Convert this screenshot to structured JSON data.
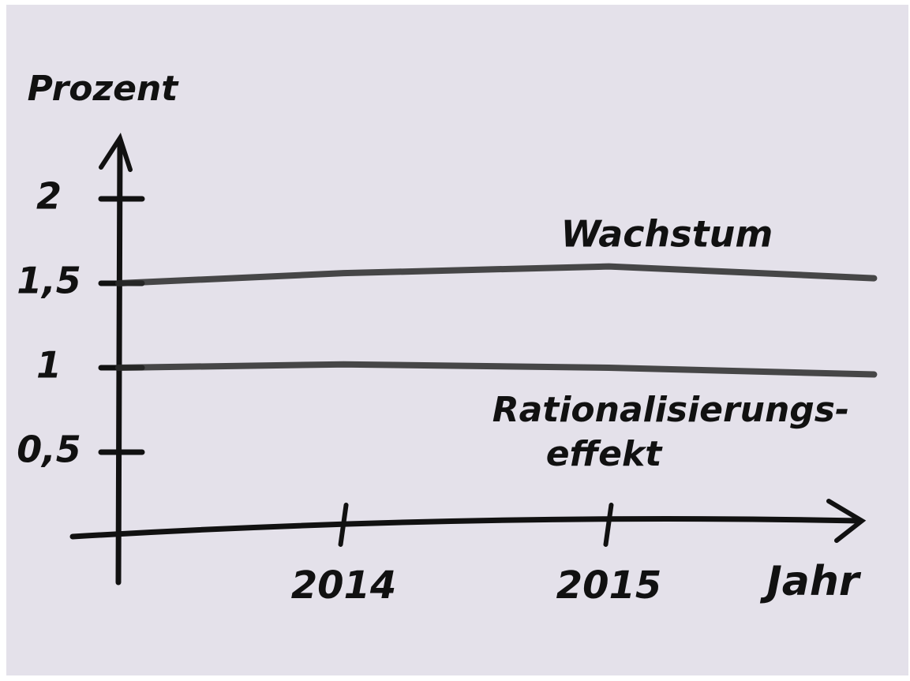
{
  "chart_data": {
    "type": "line",
    "y_label": "Prozent",
    "x_label": "Jahr",
    "annotations": [
      "Wachstum",
      "Rationalisierungs-",
      "effekt"
    ],
    "x": [
      2013.15,
      2014,
      2015,
      2016
    ],
    "series": [
      {
        "color": "#2a2a2a",
        "values": [
          1.5,
          1.56,
          1.6,
          1.53
        ]
      },
      {
        "color": "#2a2a2a",
        "values": [
          1.0,
          1.02,
          1.0,
          0.96
        ]
      }
    ],
    "xlim": [
      2013.15,
      2016.1
    ],
    "ylim": [
      0,
      2.4
    ],
    "xticks": [
      2014,
      2015
    ],
    "yticks": [
      2,
      {
        "value": 1.5,
        "label": "1,5"
      },
      1,
      {
        "value": 0.5,
        "label": "0,5"
      }
    ]
  }
}
